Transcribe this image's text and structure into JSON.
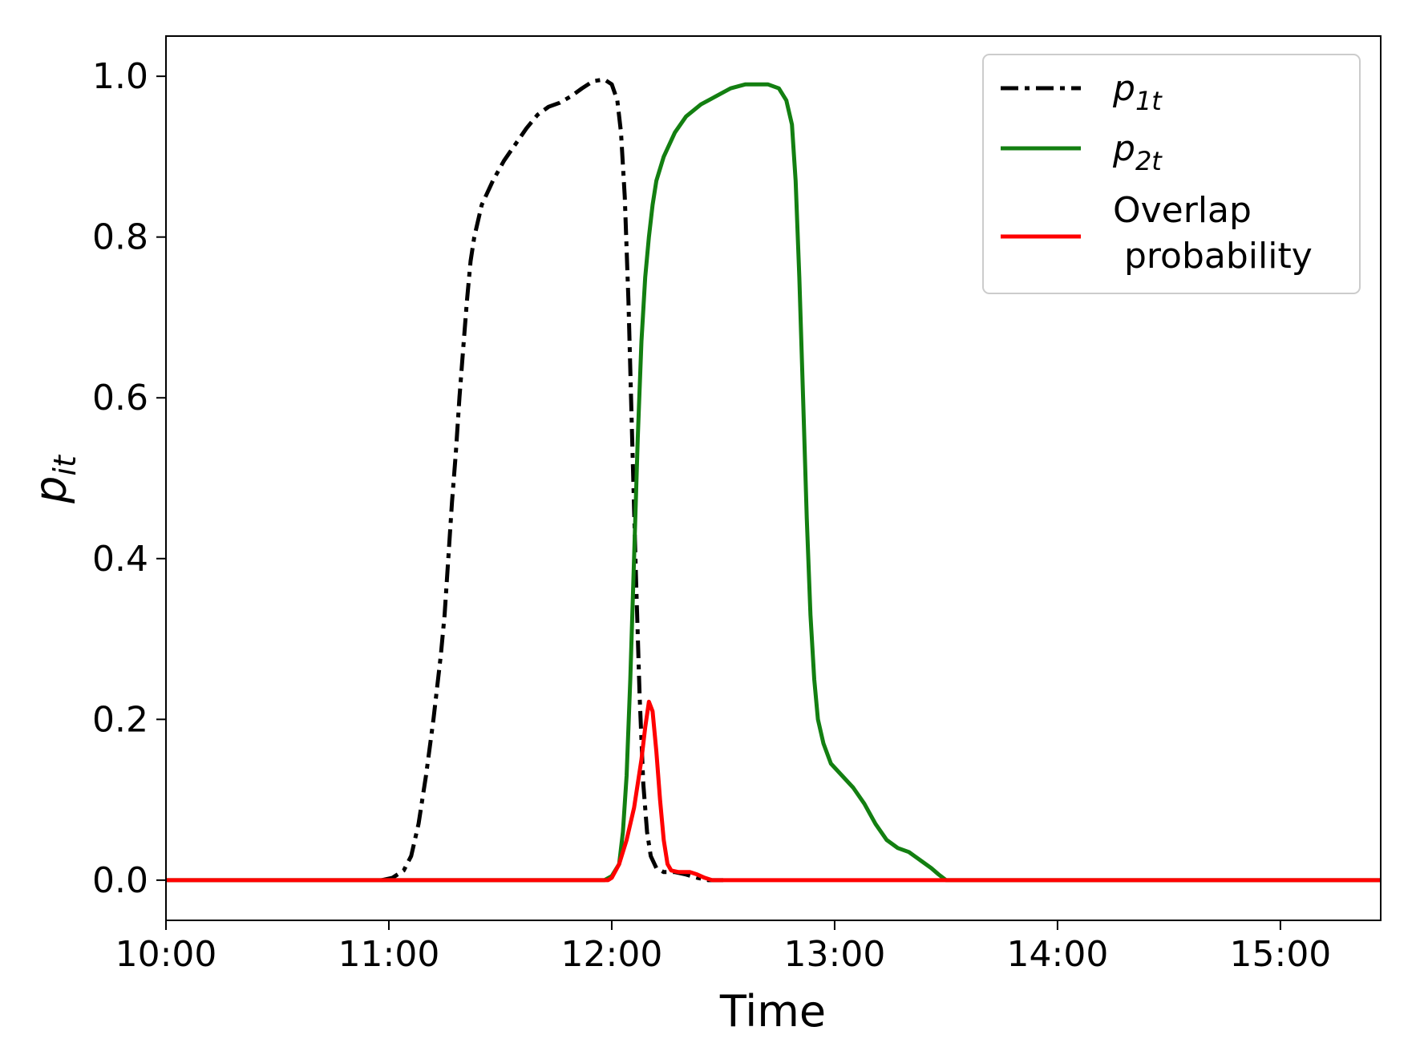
{
  "chart_data": {
    "type": "line",
    "title": "",
    "xlabel": "Time",
    "ylabel": {
      "base": "p",
      "sub": "it"
    },
    "xlim": [
      600,
      927
    ],
    "ylim": [
      -0.05,
      1.05
    ],
    "grid": false,
    "x_ticks": [
      {
        "value": 600,
        "label": "10:00"
      },
      {
        "value": 660,
        "label": "11:00"
      },
      {
        "value": 720,
        "label": "12:00"
      },
      {
        "value": 780,
        "label": "13:00"
      },
      {
        "value": 840,
        "label": "14:00"
      },
      {
        "value": 900,
        "label": "15:00"
      }
    ],
    "y_ticks": [
      {
        "value": 0.0,
        "label": "0.0"
      },
      {
        "value": 0.2,
        "label": "0.2"
      },
      {
        "value": 0.4,
        "label": "0.4"
      },
      {
        "value": 0.6,
        "label": "0.6"
      },
      {
        "value": 0.8,
        "label": "0.8"
      },
      {
        "value": 1.0,
        "label": "1.0"
      }
    ],
    "legend": {
      "position": "top-right",
      "entries": [
        {
          "series": "p1",
          "base": "p",
          "sub": "1t"
        },
        {
          "series": "p2",
          "base": "p",
          "sub": "2t"
        },
        {
          "series": "overlap",
          "lines": [
            "Overlap",
            " probability"
          ]
        }
      ]
    },
    "series": [
      {
        "id": "p1",
        "name": "p1t",
        "color": "#000000",
        "style": "dashdot",
        "points": [
          [
            658,
            0.0
          ],
          [
            661,
            0.003
          ],
          [
            664,
            0.012
          ],
          [
            666,
            0.03
          ],
          [
            668,
            0.07
          ],
          [
            670,
            0.13
          ],
          [
            672,
            0.2
          ],
          [
            674,
            0.28
          ],
          [
            675,
            0.33
          ],
          [
            676,
            0.4
          ],
          [
            677,
            0.47
          ],
          [
            678,
            0.53
          ],
          [
            679,
            0.6
          ],
          [
            680,
            0.66
          ],
          [
            681,
            0.72
          ],
          [
            682,
            0.77
          ],
          [
            683,
            0.8
          ],
          [
            685,
            0.84
          ],
          [
            688,
            0.87
          ],
          [
            691,
            0.895
          ],
          [
            694,
            0.915
          ],
          [
            697,
            0.935
          ],
          [
            700,
            0.952
          ],
          [
            703,
            0.962
          ],
          [
            706,
            0.967
          ],
          [
            709,
            0.975
          ],
          [
            712,
            0.985
          ],
          [
            715,
            0.994
          ],
          [
            718,
            0.996
          ],
          [
            720,
            0.99
          ],
          [
            721.5,
            0.97
          ],
          [
            722.5,
            0.93
          ],
          [
            723.5,
            0.85
          ],
          [
            724.5,
            0.72
          ],
          [
            725.5,
            0.55
          ],
          [
            726.5,
            0.38
          ],
          [
            727.5,
            0.23
          ],
          [
            728.5,
            0.12
          ],
          [
            729.5,
            0.06
          ],
          [
            730.5,
            0.03
          ],
          [
            732,
            0.015
          ],
          [
            734,
            0.01
          ],
          [
            737,
            0.01
          ],
          [
            740,
            0.007
          ],
          [
            743,
            0.003
          ],
          [
            746,
            0.0
          ],
          [
            750,
            0.0
          ]
        ]
      },
      {
        "id": "p2",
        "name": "p2t",
        "color": "#137f11",
        "style": "solid",
        "points": [
          [
            600,
            0.0
          ],
          [
            718,
            0.0
          ],
          [
            720,
            0.005
          ],
          [
            722,
            0.02
          ],
          [
            723,
            0.06
          ],
          [
            724,
            0.13
          ],
          [
            725,
            0.25
          ],
          [
            726,
            0.4
          ],
          [
            727,
            0.55
          ],
          [
            728,
            0.67
          ],
          [
            729,
            0.75
          ],
          [
            730,
            0.8
          ],
          [
            731,
            0.84
          ],
          [
            732,
            0.87
          ],
          [
            734,
            0.9
          ],
          [
            737,
            0.93
          ],
          [
            740,
            0.95
          ],
          [
            744,
            0.965
          ],
          [
            748,
            0.975
          ],
          [
            752,
            0.985
          ],
          [
            756,
            0.99
          ],
          [
            762,
            0.99
          ],
          [
            765,
            0.985
          ],
          [
            767,
            0.97
          ],
          [
            768.5,
            0.94
          ],
          [
            769.5,
            0.87
          ],
          [
            770.5,
            0.75
          ],
          [
            771.5,
            0.6
          ],
          [
            772.5,
            0.45
          ],
          [
            773.5,
            0.33
          ],
          [
            774.5,
            0.25
          ],
          [
            775.5,
            0.2
          ],
          [
            777,
            0.17
          ],
          [
            779,
            0.145
          ],
          [
            782,
            0.13
          ],
          [
            785,
            0.115
          ],
          [
            788,
            0.095
          ],
          [
            791,
            0.07
          ],
          [
            794,
            0.05
          ],
          [
            797,
            0.04
          ],
          [
            800,
            0.035
          ],
          [
            803,
            0.025
          ],
          [
            806,
            0.015
          ],
          [
            808,
            0.007
          ],
          [
            810,
            0.0
          ],
          [
            927,
            0.0
          ]
        ]
      },
      {
        "id": "overlap",
        "name": "Overlap probability",
        "color": "#ff0000",
        "style": "solid",
        "points": [
          [
            600,
            0.0
          ],
          [
            719,
            0.0
          ],
          [
            720,
            0.003
          ],
          [
            722,
            0.02
          ],
          [
            724,
            0.05
          ],
          [
            726,
            0.09
          ],
          [
            728,
            0.15
          ],
          [
            729,
            0.19
          ],
          [
            730,
            0.222
          ],
          [
            731,
            0.21
          ],
          [
            732,
            0.16
          ],
          [
            733,
            0.1
          ],
          [
            734,
            0.05
          ],
          [
            735,
            0.02
          ],
          [
            736,
            0.012
          ],
          [
            738,
            0.01
          ],
          [
            741,
            0.01
          ],
          [
            743,
            0.007
          ],
          [
            745,
            0.003
          ],
          [
            747,
            0.0
          ],
          [
            927,
            0.0
          ]
        ]
      }
    ]
  }
}
